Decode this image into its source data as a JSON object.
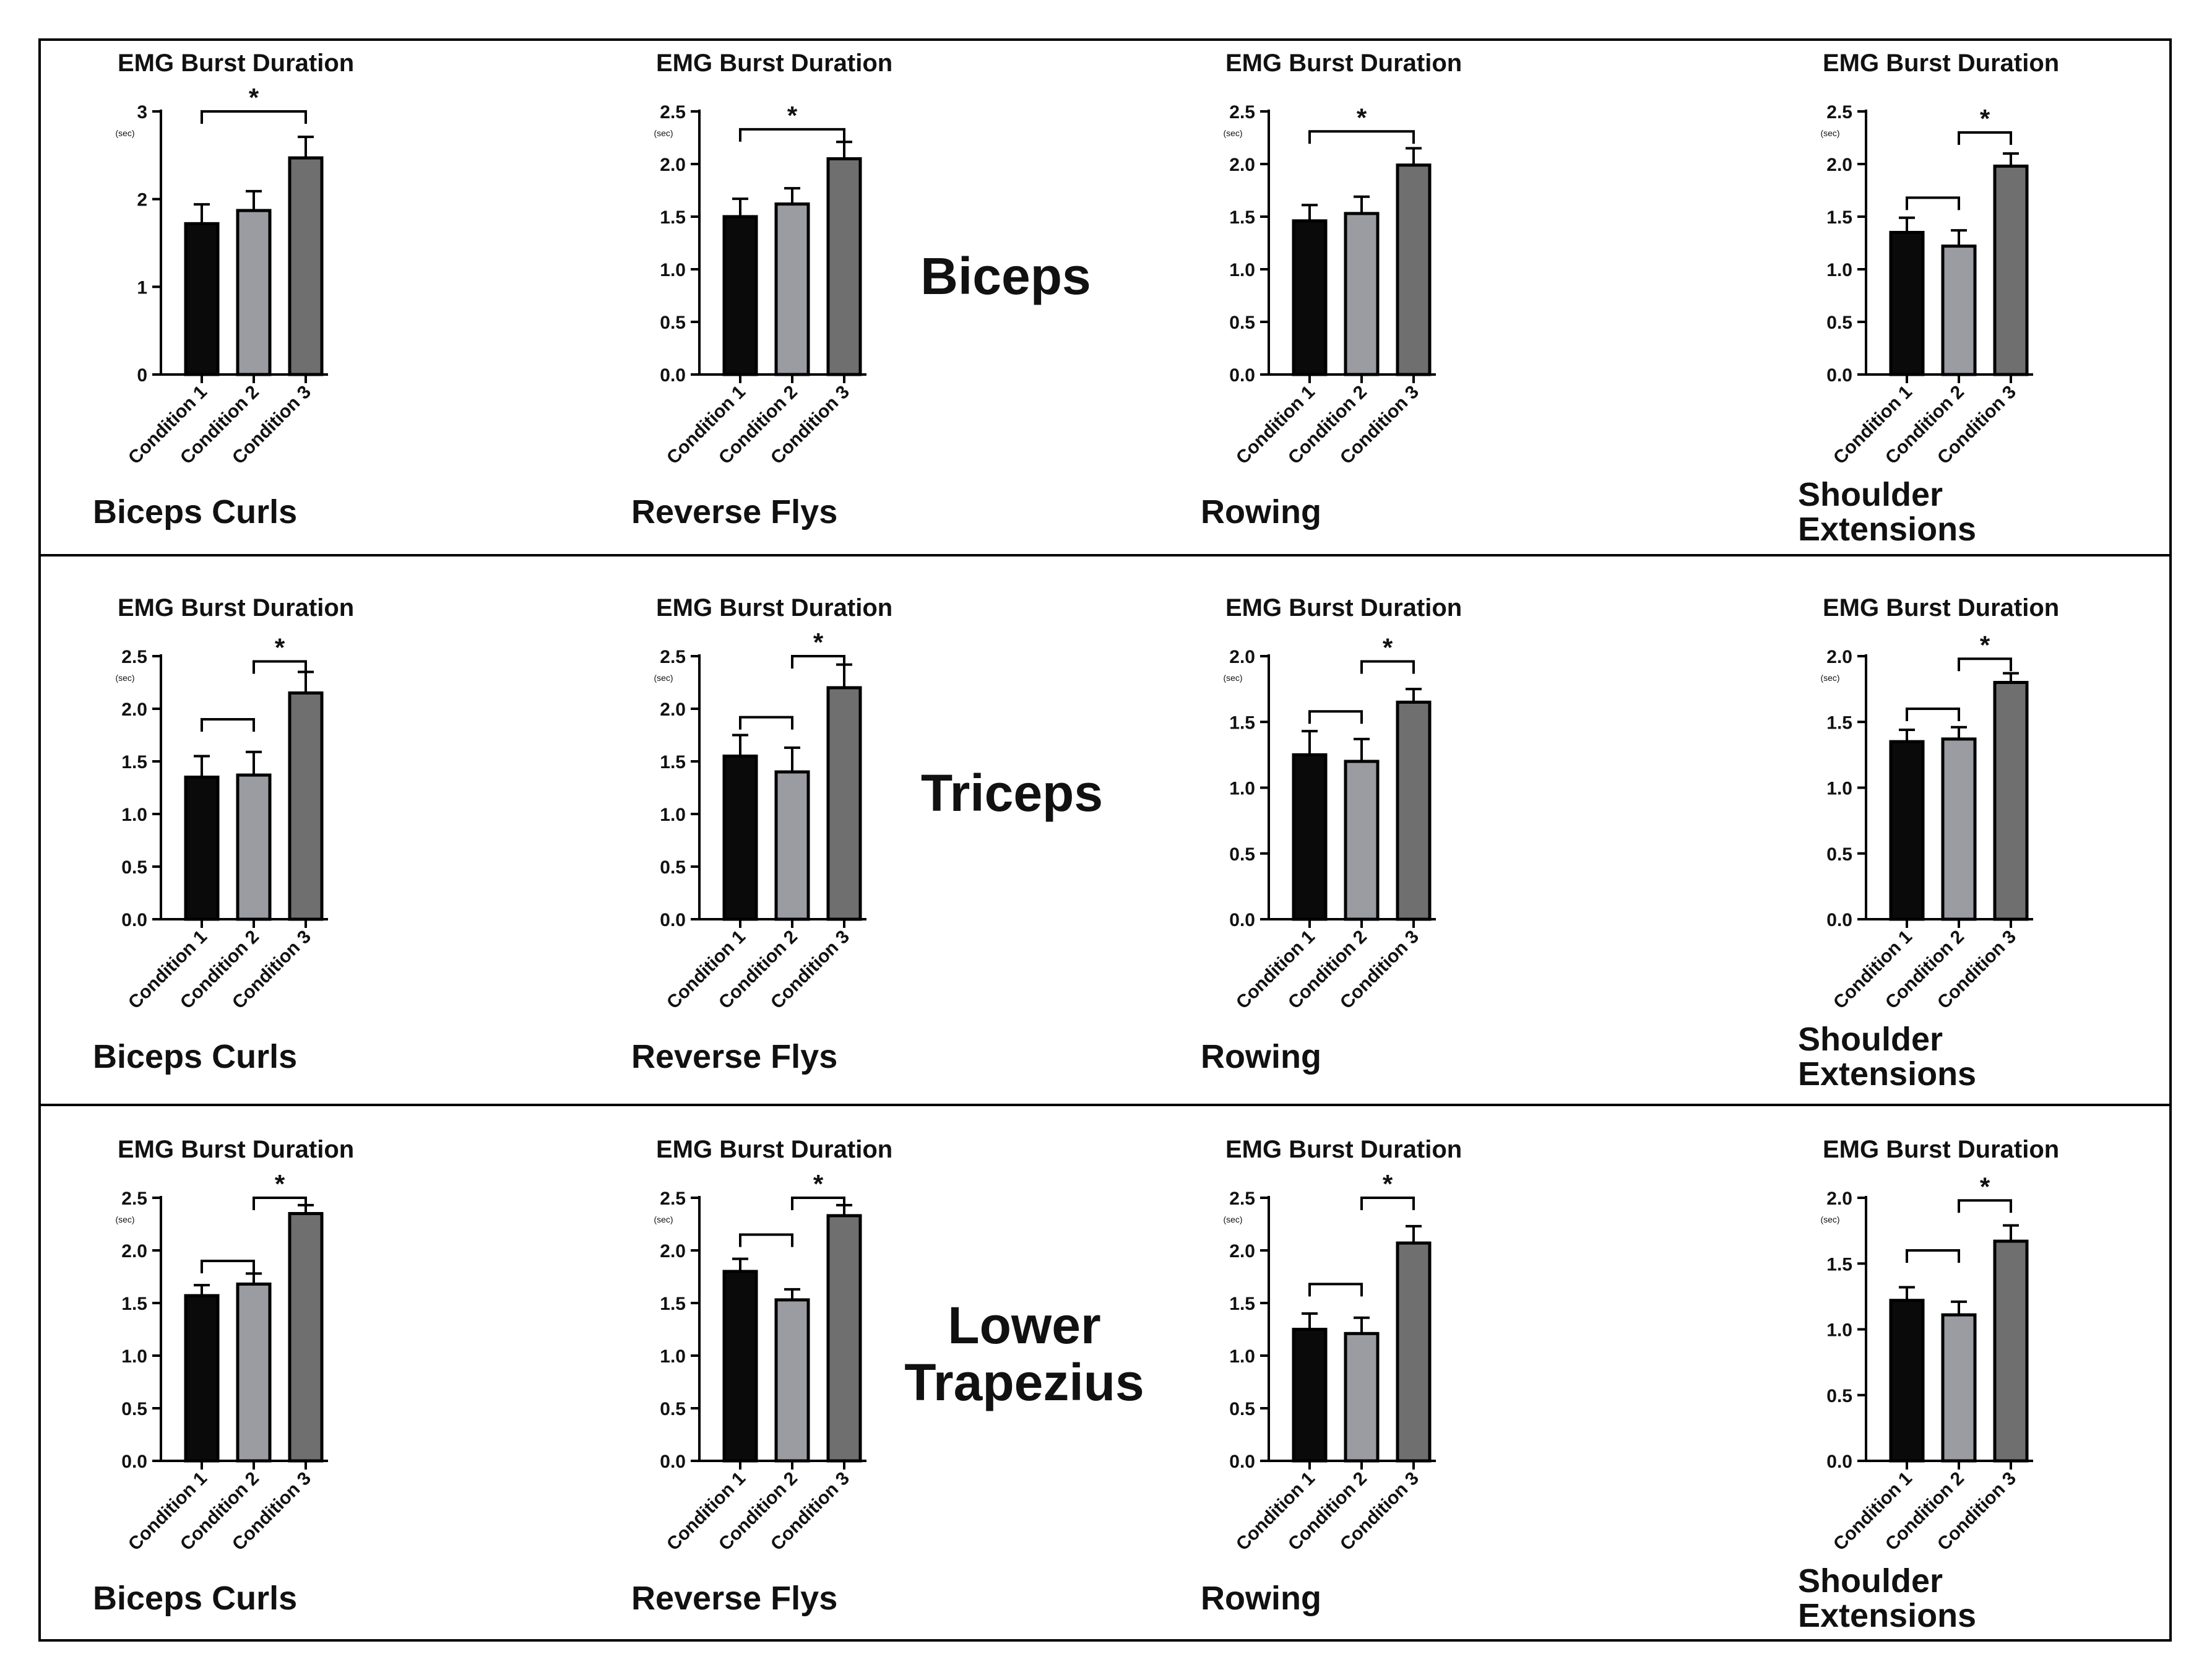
{
  "colors": {
    "condition1": "#0a0a0a",
    "condition2": "#9b9ca1",
    "condition3": "#6f6f6f",
    "stroke": "#000000"
  },
  "rows": [
    {
      "muscle_lines": [
        "Biceps"
      ]
    },
    {
      "muscle_lines": [
        "Triceps"
      ]
    },
    {
      "muscle_lines": [
        "Lower",
        "Trapezius"
      ]
    }
  ],
  "chart_data": [
    {
      "type": "bar",
      "row": 0,
      "col": 0,
      "title": "EMG Burst Duration",
      "ylabel": "(sec)",
      "exercise_lines": [
        "Biceps Curls"
      ],
      "categories": [
        "Condition 1",
        "Condition 2",
        "Condition 3"
      ],
      "values": [
        1.72,
        1.87,
        2.47
      ],
      "errors": [
        0.22,
        0.22,
        0.24
      ],
      "ylim": [
        0,
        3
      ],
      "ticks": [
        0,
        1,
        2,
        3
      ],
      "tick_labels": [
        "0",
        "1",
        "2",
        "3"
      ],
      "brackets": [
        {
          "from": 0,
          "to": 2,
          "level": 3.0,
          "label": "*"
        }
      ]
    },
    {
      "type": "bar",
      "row": 0,
      "col": 1,
      "title": "EMG Burst Duration",
      "ylabel": "(sec)",
      "exercise_lines": [
        "Reverse Flys"
      ],
      "categories": [
        "Condition 1",
        "Condition 2",
        "Condition 3"
      ],
      "values": [
        1.5,
        1.62,
        2.05
      ],
      "errors": [
        0.17,
        0.15,
        0.16
      ],
      "ylim": [
        0,
        2.5
      ],
      "ticks": [
        0,
        0.5,
        1.0,
        1.5,
        2.0,
        2.5
      ],
      "tick_labels": [
        "0.0",
        "0.5",
        "1.0",
        "1.5",
        "2.0",
        "2.5"
      ],
      "brackets": [
        {
          "from": 0,
          "to": 2,
          "level": 2.33,
          "label": "*"
        }
      ]
    },
    {
      "type": "bar",
      "row": 0,
      "col": 2,
      "title": "EMG Burst Duration",
      "ylabel": "(sec)",
      "exercise_lines": [
        "Rowing"
      ],
      "categories": [
        "Condition 1",
        "Condition 2",
        "Condition 3"
      ],
      "values": [
        1.46,
        1.53,
        1.99
      ],
      "errors": [
        0.15,
        0.16,
        0.16
      ],
      "ylim": [
        0,
        2.5
      ],
      "ticks": [
        0,
        0.5,
        1.0,
        1.5,
        2.0,
        2.5
      ],
      "tick_labels": [
        "0.0",
        "0.5",
        "1.0",
        "1.5",
        "2.0",
        "2.5"
      ],
      "brackets": [
        {
          "from": 0,
          "to": 2,
          "level": 2.31,
          "label": "*"
        }
      ]
    },
    {
      "type": "bar",
      "row": 0,
      "col": 3,
      "title": "EMG Burst Duration",
      "ylabel": "(sec)",
      "exercise_lines": [
        "Shoulder",
        "Extensions"
      ],
      "categories": [
        "Condition 1",
        "Condition 2",
        "Condition 3"
      ],
      "values": [
        1.35,
        1.22,
        1.98
      ],
      "errors": [
        0.14,
        0.15,
        0.12
      ],
      "ylim": [
        0,
        2.5
      ],
      "ticks": [
        0,
        0.5,
        1.0,
        1.5,
        2.0,
        2.5
      ],
      "tick_labels": [
        "0.0",
        "0.5",
        "1.0",
        "1.5",
        "2.0",
        "2.5"
      ],
      "brackets": [
        {
          "from": 0,
          "to": 1,
          "level": 1.68,
          "label": ""
        },
        {
          "from": 1,
          "to": 2,
          "level": 2.3,
          "label": "*"
        }
      ]
    },
    {
      "type": "bar",
      "row": 1,
      "col": 0,
      "title": "EMG Burst Duration",
      "ylabel": "(sec)",
      "exercise_lines": [
        "Biceps Curls"
      ],
      "categories": [
        "Condition 1",
        "Condition 2",
        "Condition 3"
      ],
      "values": [
        1.35,
        1.37,
        2.15
      ],
      "errors": [
        0.2,
        0.22,
        0.2
      ],
      "ylim": [
        0,
        2.5
      ],
      "ticks": [
        0,
        0.5,
        1.0,
        1.5,
        2.0,
        2.5
      ],
      "tick_labels": [
        "0.0",
        "0.5",
        "1.0",
        "1.5",
        "2.0",
        "2.5"
      ],
      "brackets": [
        {
          "from": 0,
          "to": 1,
          "level": 1.9,
          "label": ""
        },
        {
          "from": 1,
          "to": 2,
          "level": 2.45,
          "label": "*"
        }
      ]
    },
    {
      "type": "bar",
      "row": 1,
      "col": 1,
      "title": "EMG Burst Duration",
      "ylabel": "(sec)",
      "exercise_lines": [
        "Reverse Flys"
      ],
      "categories": [
        "Condition 1",
        "Condition 2",
        "Condition 3"
      ],
      "values": [
        1.55,
        1.4,
        2.2
      ],
      "errors": [
        0.2,
        0.23,
        0.22
      ],
      "ylim": [
        0,
        2.5
      ],
      "ticks": [
        0,
        0.5,
        1.0,
        1.5,
        2.0,
        2.5
      ],
      "tick_labels": [
        "0.0",
        "0.5",
        "1.0",
        "1.5",
        "2.0",
        "2.5"
      ],
      "brackets": [
        {
          "from": 0,
          "to": 1,
          "level": 1.92,
          "label": ""
        },
        {
          "from": 1,
          "to": 2,
          "level": 2.5,
          "label": "*"
        }
      ]
    },
    {
      "type": "bar",
      "row": 1,
      "col": 2,
      "title": "EMG Burst Duration",
      "ylabel": "(sec)",
      "exercise_lines": [
        "Rowing"
      ],
      "categories": [
        "Condition 1",
        "Condition 2",
        "Condition 3"
      ],
      "values": [
        1.25,
        1.2,
        1.65
      ],
      "errors": [
        0.18,
        0.17,
        0.1
      ],
      "ylim": [
        0,
        2.0
      ],
      "ticks": [
        0,
        0.5,
        1.0,
        1.5,
        2.0
      ],
      "tick_labels": [
        "0.0",
        "0.5",
        "1.0",
        "1.5",
        "2.0"
      ],
      "brackets": [
        {
          "from": 0,
          "to": 1,
          "level": 1.58,
          "label": ""
        },
        {
          "from": 1,
          "to": 2,
          "level": 1.96,
          "label": "*"
        }
      ]
    },
    {
      "type": "bar",
      "row": 1,
      "col": 3,
      "title": "EMG Burst Duration",
      "ylabel": "(sec)",
      "exercise_lines": [
        "Shoulder",
        "Extensions"
      ],
      "categories": [
        "Condition 1",
        "Condition 2",
        "Condition 3"
      ],
      "values": [
        1.35,
        1.37,
        1.8
      ],
      "errors": [
        0.09,
        0.09,
        0.07
      ],
      "ylim": [
        0,
        2.0
      ],
      "ticks": [
        0,
        0.5,
        1.0,
        1.5,
        2.0
      ],
      "tick_labels": [
        "0.0",
        "0.5",
        "1.0",
        "1.5",
        "2.0"
      ],
      "brackets": [
        {
          "from": 0,
          "to": 1,
          "level": 1.6,
          "label": ""
        },
        {
          "from": 1,
          "to": 2,
          "level": 1.98,
          "label": "*"
        }
      ]
    },
    {
      "type": "bar",
      "row": 2,
      "col": 0,
      "title": "EMG Burst Duration",
      "ylabel": "(sec)",
      "exercise_lines": [
        "Biceps Curls"
      ],
      "categories": [
        "Condition 1",
        "Condition 2",
        "Condition 3"
      ],
      "values": [
        1.57,
        1.68,
        2.35
      ],
      "errors": [
        0.1,
        0.1,
        0.08
      ],
      "ylim": [
        0,
        2.5
      ],
      "ticks": [
        0,
        0.5,
        1.0,
        1.5,
        2.0,
        2.5
      ],
      "tick_labels": [
        "0.0",
        "0.5",
        "1.0",
        "1.5",
        "2.0",
        "2.5"
      ],
      "brackets": [
        {
          "from": 0,
          "to": 1,
          "level": 1.9,
          "label": ""
        },
        {
          "from": 1,
          "to": 2,
          "level": 2.5,
          "label": "*"
        }
      ]
    },
    {
      "type": "bar",
      "row": 2,
      "col": 1,
      "title": "EMG Burst Duration",
      "ylabel": "(sec)",
      "exercise_lines": [
        "Reverse Flys"
      ],
      "categories": [
        "Condition 1",
        "Condition 2",
        "Condition 3"
      ],
      "values": [
        1.8,
        1.53,
        2.33
      ],
      "errors": [
        0.12,
        0.1,
        0.1
      ],
      "ylim": [
        0,
        2.5
      ],
      "ticks": [
        0,
        0.5,
        1.0,
        1.5,
        2.0,
        2.5
      ],
      "tick_labels": [
        "0.0",
        "0.5",
        "1.0",
        "1.5",
        "2.0",
        "2.5"
      ],
      "brackets": [
        {
          "from": 0,
          "to": 1,
          "level": 2.15,
          "label": ""
        },
        {
          "from": 1,
          "to": 2,
          "level": 2.5,
          "label": "*"
        }
      ]
    },
    {
      "type": "bar",
      "row": 2,
      "col": 2,
      "title": "EMG Burst Duration",
      "ylabel": "(sec)",
      "exercise_lines": [
        "Rowing"
      ],
      "categories": [
        "Condition 1",
        "Condition 2",
        "Condition 3"
      ],
      "values": [
        1.25,
        1.21,
        2.07
      ],
      "errors": [
        0.15,
        0.15,
        0.16
      ],
      "ylim": [
        0,
        2.5
      ],
      "ticks": [
        0,
        0.5,
        1.0,
        1.5,
        2.0,
        2.5
      ],
      "tick_labels": [
        "0.0",
        "0.5",
        "1.0",
        "1.5",
        "2.0",
        "2.5"
      ],
      "brackets": [
        {
          "from": 0,
          "to": 1,
          "level": 1.68,
          "label": ""
        },
        {
          "from": 1,
          "to": 2,
          "level": 2.5,
          "label": "*"
        }
      ]
    },
    {
      "type": "bar",
      "row": 2,
      "col": 3,
      "title": "EMG Burst Duration",
      "ylabel": "(sec)",
      "exercise_lines": [
        "Shoulder",
        "Extensions"
      ],
      "categories": [
        "Condition 1",
        "Condition 2",
        "Condition 3"
      ],
      "values": [
        1.22,
        1.11,
        1.67
      ],
      "errors": [
        0.1,
        0.1,
        0.12
      ],
      "ylim": [
        0,
        2.0
      ],
      "ticks": [
        0,
        0.5,
        1.0,
        1.5,
        2.0
      ],
      "tick_labels": [
        "0.0",
        "0.5",
        "1.0",
        "1.5",
        "2.0"
      ],
      "brackets": [
        {
          "from": 0,
          "to": 1,
          "level": 1.6,
          "label": ""
        },
        {
          "from": 1,
          "to": 2,
          "level": 1.98,
          "label": "*"
        }
      ]
    }
  ]
}
